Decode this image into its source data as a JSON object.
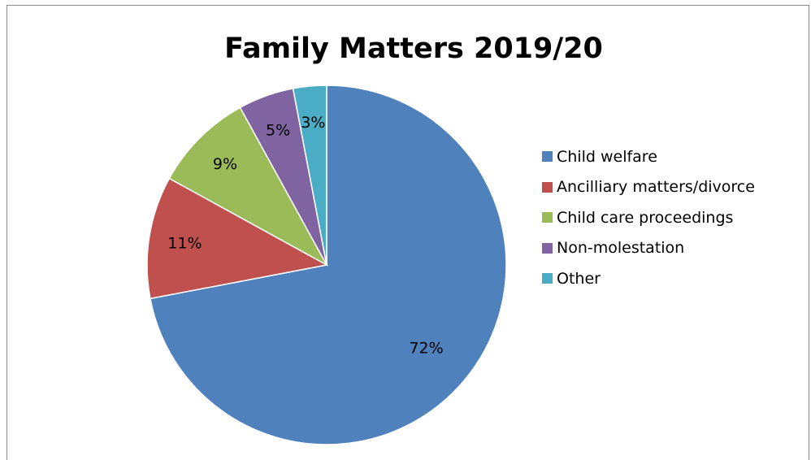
{
  "chart_data": {
    "type": "pie",
    "title": "Family Matters 2019/20",
    "legend_position": "right",
    "slices": [
      {
        "name": "Child welfare",
        "value": 72,
        "label": "72%",
        "color": "#4F81BD"
      },
      {
        "name": "Ancilliary matters/divorce",
        "value": 11,
        "label": "11%",
        "color": "#C0504D"
      },
      {
        "name": "Child care proceedings",
        "value": 9,
        "label": "9%",
        "color": "#9BBB59"
      },
      {
        "name": "Non-molestation",
        "value": 5,
        "label": "5%",
        "color": "#8064A2"
      },
      {
        "name": "Other",
        "value": 3,
        "label": "3%",
        "color": "#4BACC6"
      }
    ]
  }
}
